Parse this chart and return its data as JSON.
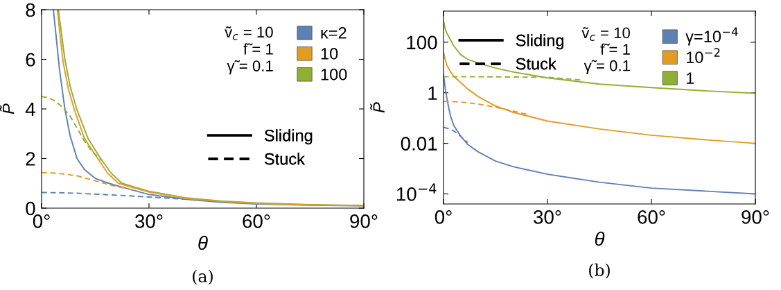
{
  "chart_data": [
    {
      "type": "line",
      "xlabel": "θ",
      "ylabel": "P̃",
      "xlim": [
        0,
        90
      ],
      "ylim": [
        0,
        8
      ],
      "xticks": [
        {
          "value": 0,
          "label": "0°"
        },
        {
          "value": 30,
          "label": "30°"
        },
        {
          "value": 60,
          "label": "60°"
        },
        {
          "value": 90,
          "label": "90°"
        }
      ],
      "yticks": [
        0,
        2,
        4,
        6,
        8
      ],
      "legend": "top right",
      "grid": false,
      "annotations": [
        "ṽ$_{c}$ = 10",
        "f̃ = 1",
        "γ̃ = 0.1",
        "(a)"
      ],
      "series": [
        {
          "name": "κ=2",
          "color": "#5e81b5",
          "line_style": "solid",
          "x": [
            3.3,
            5,
            6.5,
            8,
            9.9,
            12,
            15,
            18.8,
            23.6,
            30,
            40,
            50,
            60,
            75,
            90
          ],
          "values": [
            8,
            5.6,
            4,
            2.9,
            2,
            1.55,
            1.2,
            1,
            0.8,
            0.55,
            0.36,
            0.24,
            0.17,
            0.12,
            0.09
          ]
        },
        {
          "name": "10",
          "color": "#e19c24",
          "line_style": "solid",
          "x": [
            4.4,
            6,
            7.5,
            9.1,
            12,
            15.7,
            18.5,
            21.5,
            25,
            30,
            40,
            50,
            60,
            75,
            90
          ],
          "values": [
            8,
            5.9,
            4.8,
            4,
            2.8,
            2,
            1.4,
            1,
            0.85,
            0.65,
            0.4,
            0.27,
            0.19,
            0.13,
            0.1
          ]
        },
        {
          "name": "100",
          "color": "#8fb032",
          "line_style": "solid",
          "x": [
            4.7,
            6.5,
            8,
            9.8,
            13,
            16.5,
            19.5,
            22.5,
            26,
            30,
            40,
            50,
            60,
            75,
            90
          ],
          "values": [
            8,
            6,
            4.9,
            4,
            2.8,
            2,
            1.4,
            1,
            0.85,
            0.68,
            0.42,
            0.29,
            0.21,
            0.14,
            0.11
          ]
        },
        {
          "color": "#5e81b5",
          "line_style": "dashed",
          "x": [
            0,
            5,
            10,
            20,
            30,
            40,
            50
          ],
          "values": [
            0.63,
            0.62,
            0.6,
            0.53,
            0.45,
            0.36,
            0.25
          ]
        },
        {
          "color": "#e19c24",
          "line_style": "dashed",
          "x": [
            0,
            3,
            6,
            10,
            15,
            20,
            25
          ],
          "values": [
            1.43,
            1.42,
            1.38,
            1.3,
            1.1,
            0.9,
            0.75
          ]
        },
        {
          "color": "#8fb032",
          "line_style": "dashed",
          "x": [
            0,
            2,
            4,
            6,
            8,
            10,
            12,
            14,
            17
          ],
          "values": [
            4.5,
            4.45,
            4.3,
            4.05,
            3.7,
            3.2,
            2.7,
            2.3,
            1.9
          ]
        },
        {
          "name": "Sliding",
          "color": "#000000",
          "line_style": "solid"
        },
        {
          "name": "Stuck",
          "color": "#000000",
          "line_style": "dashed"
        }
      ]
    },
    {
      "type": "line",
      "xlabel": "θ",
      "ylabel": "P̃",
      "xlim": [
        0,
        90
      ],
      "ylim": [
        4e-05,
        1700
      ],
      "log": "y",
      "xticks": [
        {
          "value": 0,
          "label": "0°"
        },
        {
          "value": 30,
          "label": "30°"
        },
        {
          "value": 60,
          "label": "60°"
        },
        {
          "value": 90,
          "label": "90°"
        }
      ],
      "yticks": [
        {
          "value": 0.0001,
          "label": "10$^{−4}$"
        },
        0.01,
        1,
        100
      ],
      "legend": "top right",
      "grid": false,
      "annotations": [
        "ṽ$_{c}$ = 10",
        "f̃ = 1",
        "γ̃ = 0.1",
        "(b)"
      ],
      "series": [
        {
          "name": "γ=10$^{−4}$",
          "color": "#5e81b5",
          "line_style": "solid",
          "x": [
            0,
            0.5,
            1,
            2,
            3,
            5,
            7,
            10,
            15,
            20,
            30,
            45,
            60,
            75,
            90
          ],
          "values": [
            5.4,
            1.5,
            0.57,
            0.12,
            0.05,
            0.019,
            0.009,
            0.0046,
            0.002,
            0.0012,
            0.0006,
            0.00029,
            0.00017,
            0.00013,
            0.0001
          ]
        },
        {
          "name": "10$^{−2}$",
          "color": "#e19c24",
          "line_style": "solid",
          "x": [
            0,
            0.5,
            1,
            2,
            3,
            5,
            7,
            10,
            15,
            20,
            30,
            45,
            60,
            75,
            90
          ],
          "values": [
            41,
            20,
            12,
            6.8,
            4.5,
            2.5,
            1.4,
            0.71,
            0.3,
            0.17,
            0.076,
            0.037,
            0.021,
            0.014,
            0.01
          ]
        },
        {
          "name": "1",
          "color": "#8fb032",
          "line_style": "solid",
          "x": [
            0,
            0.5,
            1,
            2,
            3,
            5,
            7,
            10,
            15,
            20,
            30,
            45,
            60,
            75,
            90
          ],
          "values": [
            680,
            330,
            220,
            125,
            70,
            32,
            21,
            15,
            9.5,
            6.7,
            3.9,
            2.2,
            1.6,
            1.2,
            0.95
          ]
        },
        {
          "color": "#5e81b5",
          "line_style": "dashed",
          "x": [
            0,
            1.5,
            3,
            4.5,
            6,
            7
          ],
          "values": [
            0.043,
            0.038,
            0.031,
            0.021,
            0.014,
            0.011
          ]
        },
        {
          "color": "#e19c24",
          "line_style": "dashed",
          "x": [
            0,
            5,
            10,
            15,
            20,
            25
          ],
          "values": [
            0.46,
            0.43,
            0.36,
            0.27,
            0.19,
            0.13
          ]
        },
        {
          "color": "#8fb032",
          "line_style": "dashed",
          "x": [
            0,
            10,
            20,
            30,
            40
          ],
          "values": [
            4.3,
            4.3,
            4.2,
            4.1,
            3.2
          ]
        },
        {
          "name": "Sliding",
          "color": "#000000",
          "line_style": "solid"
        },
        {
          "name": "Stuck",
          "color": "#000000",
          "line_style": "dashed"
        }
      ]
    }
  ]
}
